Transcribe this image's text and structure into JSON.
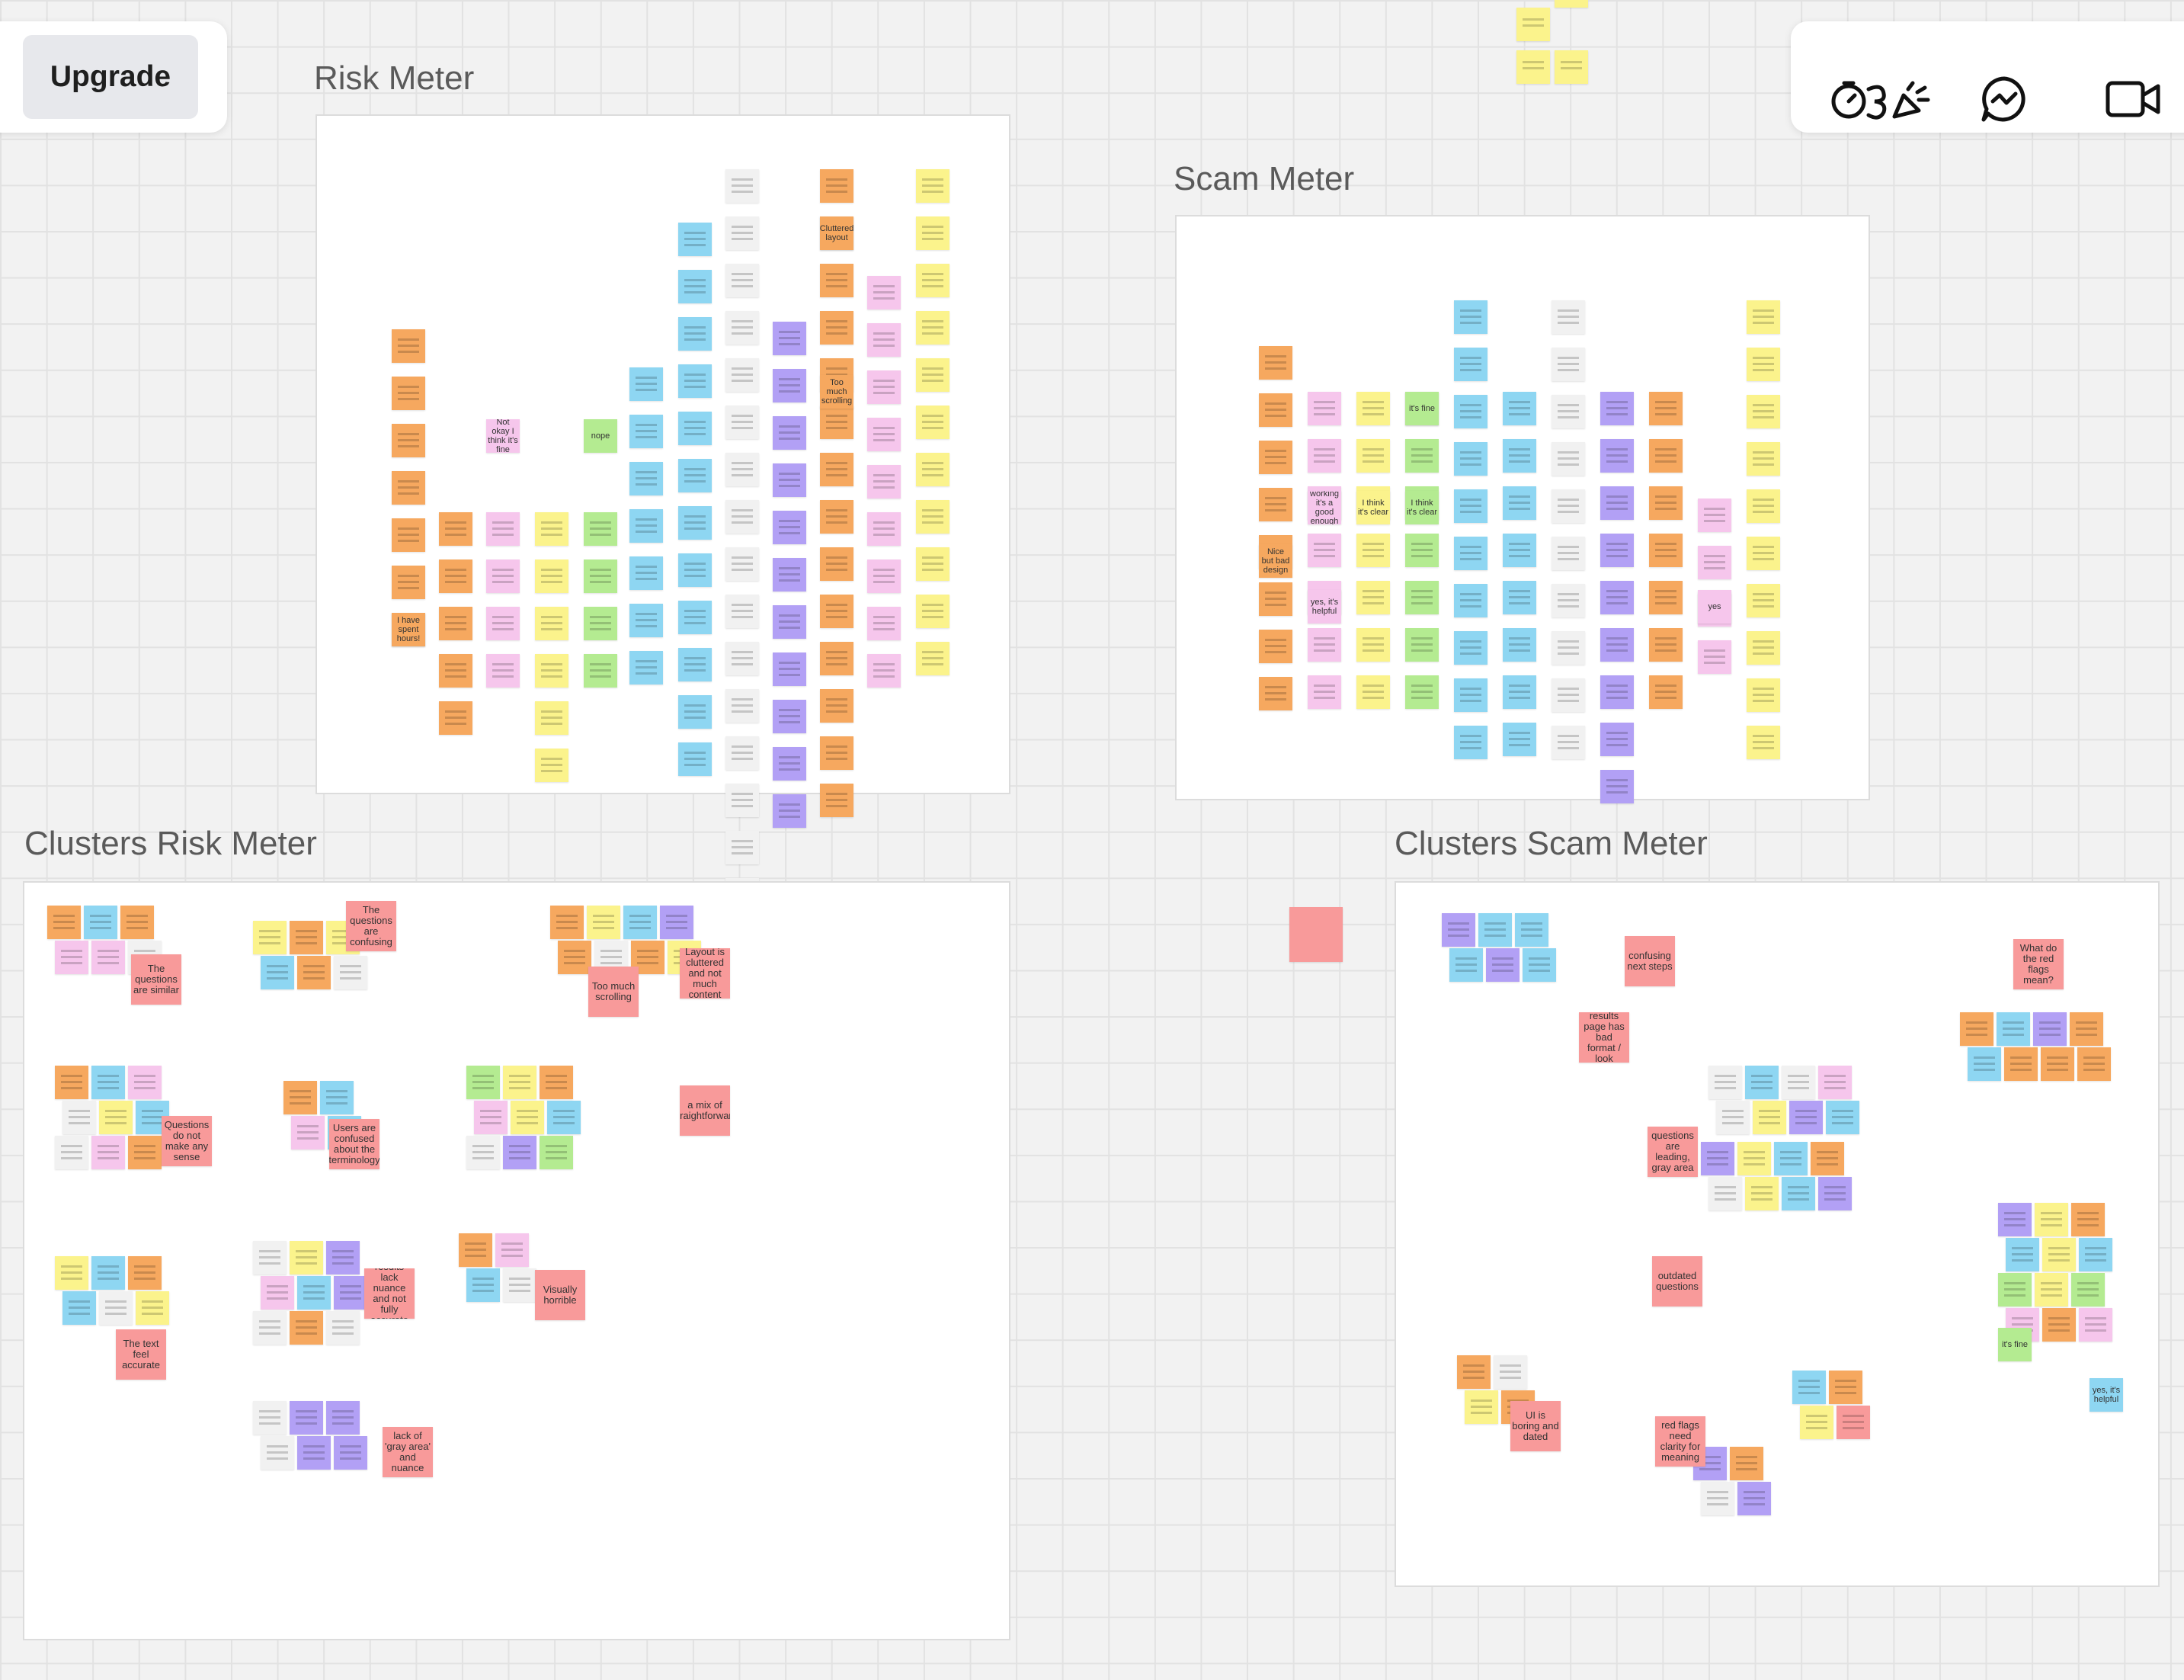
{
  "toolbar_left": {
    "upgrade_label": "Upgrade"
  },
  "toolbar_right": {
    "tools": [
      {
        "name": "timer-icon"
      },
      {
        "name": "reactions-icon"
      },
      {
        "name": "chat-icon"
      },
      {
        "name": "video-call-icon"
      }
    ]
  },
  "frames": {
    "risk_meter": {
      "title": "Risk Meter"
    },
    "scam_meter": {
      "title": "Scam Meter"
    },
    "clusters_risk_meter": {
      "title": "Clusters Risk Meter"
    },
    "clusters_scam_meter": {
      "title": "Clusters Scam Meter"
    }
  },
  "notes": {
    "risk": [
      "nope",
      "I have spent hours!",
      "Not okay I think it's fine",
      "Too much scrolling",
      "Cluttered layout"
    ],
    "scam": [
      "it's fine",
      "I think it's clear",
      "I think it's clear",
      "yes",
      "Nice but bad design",
      "yes, it's helpful",
      "working it's a good enough"
    ],
    "clusters_risk": [
      "The questions are similar",
      "The questions are confusing",
      "Too much scrolling",
      "Layout is cluttered and not much content",
      "Questions do not make any sense",
      "Users are confused about the terminology",
      "a mix of straightforward",
      "The text feel accurate",
      "results lack nuance and not fully accurate",
      "Visually horrible",
      "lack of 'gray area' and nuance"
    ],
    "clusters_scam": [
      "confusing next steps",
      "results page has bad format / look",
      "questions are leading, gray area",
      "outdated questions",
      "UI is boring and dated",
      "red flags need clarity for meaning",
      "What do the red flags mean?",
      "it's fine",
      "yes, it's helpful"
    ]
  },
  "colors": {
    "canvas": "#f2f2f2",
    "grid": "#e2e2e2",
    "orange": "#f6a85f",
    "yellow": "#fbf38c",
    "pink": "#f6c6ec",
    "blue": "#8ed6f2",
    "green": "#b4eb91",
    "violet": "#b2a0f5",
    "white": "#f1f1f1",
    "red": "#f89a9a"
  }
}
